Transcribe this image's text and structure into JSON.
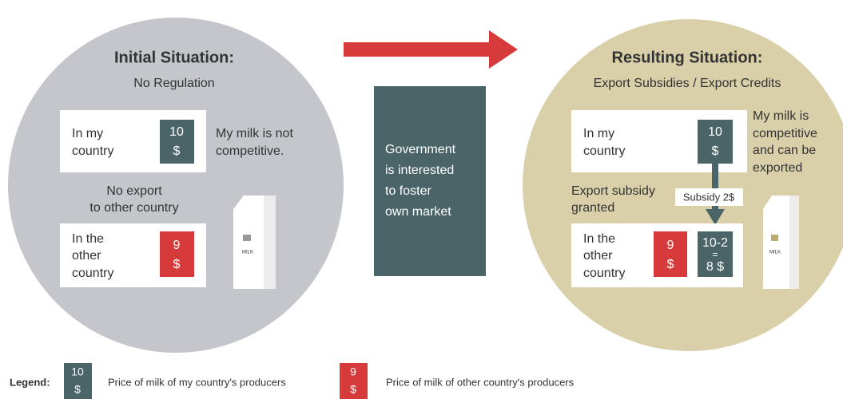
{
  "left": {
    "title": "Initial Situation:",
    "subtitle": "No Regulation",
    "box1_label": [
      "In my",
      "country"
    ],
    "box1_price": [
      "10",
      "$"
    ],
    "note": [
      "My milk is not",
      "competitive."
    ],
    "middle": [
      "No export",
      "to other country"
    ],
    "box2_label": [
      "In the",
      "other",
      "country"
    ],
    "box2_price": [
      "9",
      "$"
    ],
    "carton": "MILK"
  },
  "center": {
    "text": [
      "Government",
      "is interested",
      "to foster",
      "own market"
    ]
  },
  "right": {
    "title": "Resulting Situation:",
    "subtitle": "Export Subsidies / Export Credits",
    "box1_label": [
      "In my",
      "country"
    ],
    "box1_price": [
      "10",
      "$"
    ],
    "note": [
      "My milk is",
      "competitive",
      "and can be",
      "exported"
    ],
    "subsidy": "Subsidy 2$",
    "granted": [
      "Export subsidy",
      "granted"
    ],
    "box2_label": [
      "In the",
      "other",
      "country"
    ],
    "box2_price": [
      "9",
      "$"
    ],
    "calc": [
      "10-2",
      "=",
      "8 $"
    ],
    "carton": "MILK"
  },
  "legend": {
    "title": "Legend:",
    "mine_price": [
      "10",
      "$"
    ],
    "mine_text": "Price of milk of my country's producers",
    "other_price": [
      "9",
      "$"
    ],
    "other_text": "Price of milk of other country's producers"
  }
}
